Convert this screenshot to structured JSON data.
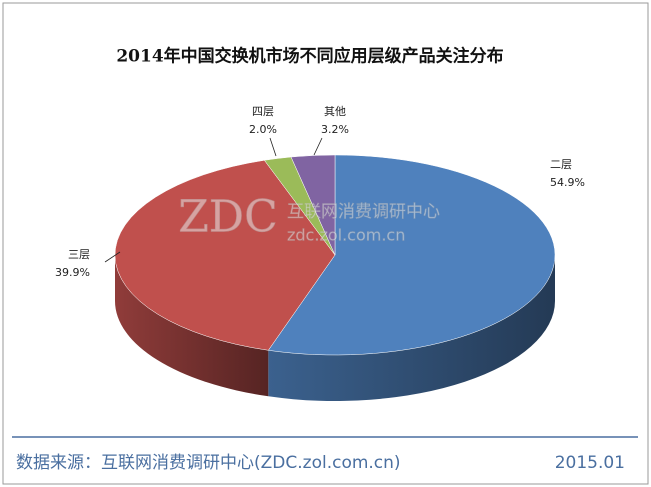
{
  "chart_data": {
    "type": "pie3d",
    "title": "2014年中国交换机市场不同应用层级产品关注分布",
    "categories": [
      "二层",
      "三层",
      "四层",
      "其他"
    ],
    "values": [
      54.9,
      39.9,
      2.0,
      3.2
    ],
    "value_labels": [
      "54.9%",
      "39.9%",
      "2.0%",
      "3.2%"
    ],
    "colors": [
      "#4f81bd",
      "#c0504d",
      "#9bbb59",
      "#8064a2"
    ]
  },
  "watermark": {
    "logo": "ZDC",
    "name": "互联网消费调研中心",
    "url": "zdc.zol.com.cn"
  },
  "footer": {
    "source": "数据来源：互联网消费调研中心(ZDC.zol.com.cn)",
    "date": "2015.01"
  }
}
